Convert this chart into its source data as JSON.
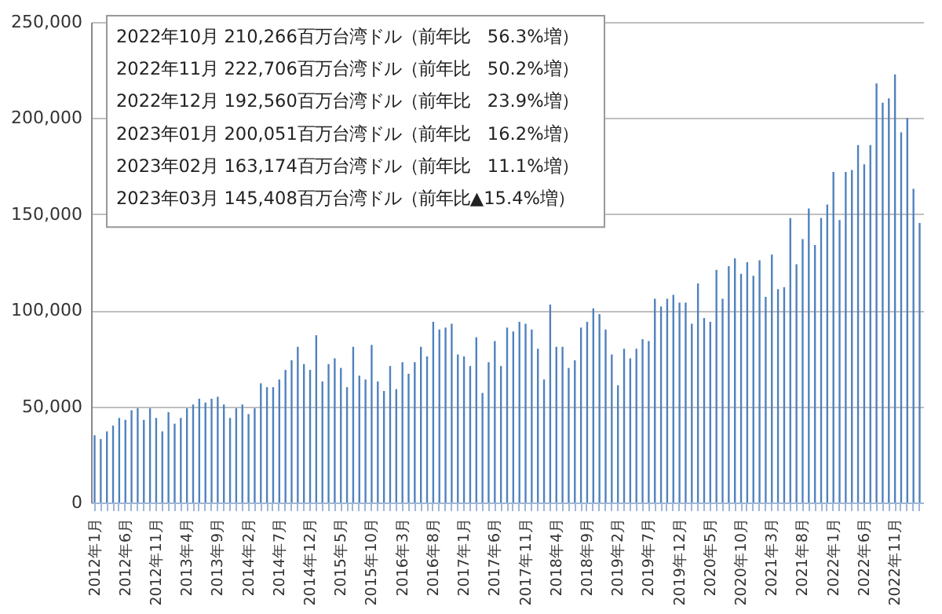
{
  "chart_data": {
    "type": "bar",
    "categories": [
      "2012年1月",
      null,
      null,
      null,
      null,
      "2012年6月",
      null,
      null,
      null,
      null,
      "2012年11月",
      null,
      null,
      null,
      null,
      "2013年4月",
      null,
      null,
      null,
      null,
      "2013年9月",
      null,
      null,
      null,
      null,
      "2014年2月",
      null,
      null,
      null,
      null,
      "2014年7月",
      null,
      null,
      null,
      null,
      "2014年12月",
      null,
      null,
      null,
      null,
      "2015年5月",
      null,
      null,
      null,
      null,
      "2015年10月",
      null,
      null,
      null,
      null,
      "2016年3月",
      null,
      null,
      null,
      null,
      "2016年8月",
      null,
      null,
      null,
      null,
      "2017年1月",
      null,
      null,
      null,
      null,
      "2017年6月",
      null,
      null,
      null,
      null,
      "2017年11月",
      null,
      null,
      null,
      null,
      "2018年4月",
      null,
      null,
      null,
      null,
      "2018年9月",
      null,
      null,
      null,
      null,
      "2019年2月",
      null,
      null,
      null,
      null,
      "2019年7月",
      null,
      null,
      null,
      null,
      "2019年12月",
      null,
      null,
      null,
      null,
      "2020年5月",
      null,
      null,
      null,
      null,
      "2020年10月",
      null,
      null,
      null,
      null,
      "2021年3月",
      null,
      null,
      null,
      null,
      "2021年8月",
      null,
      null,
      null,
      null,
      "2022年1月",
      null,
      null,
      null,
      null,
      "2022年6月",
      null,
      null,
      null,
      null,
      "2022年11月",
      null,
      null,
      null,
      null
    ],
    "values": [
      35000,
      33000,
      37000,
      40000,
      44000,
      43000,
      48000,
      49000,
      43000,
      49000,
      44000,
      37000,
      47000,
      41000,
      44000,
      49000,
      51000,
      54000,
      52000,
      54000,
      55000,
      51000,
      44000,
      49000,
      51000,
      46000,
      49000,
      62000,
      60000,
      60000,
      64000,
      69000,
      74000,
      81000,
      72000,
      69000,
      87000,
      63000,
      72000,
      75000,
      70000,
      60000,
      81000,
      66000,
      64000,
      82000,
      63000,
      58000,
      71000,
      59000,
      73000,
      67000,
      73000,
      81000,
      76000,
      94000,
      90000,
      91000,
      93000,
      77000,
      76000,
      71000,
      86000,
      57000,
      73000,
      84000,
      71000,
      91000,
      89000,
      94000,
      93000,
      90000,
      80000,
      64000,
      103000,
      81000,
      81000,
      70000,
      74000,
      91000,
      94000,
      101000,
      98000,
      90000,
      77000,
      61000,
      80000,
      75000,
      80000,
      85000,
      84000,
      106000,
      102000,
      106000,
      108000,
      104000,
      104000,
      93000,
      114000,
      96000,
      94000,
      121000,
      106000,
      123000,
      127000,
      119000,
      125000,
      118000,
      126000,
      107000,
      129000,
      111000,
      112000,
      148000,
      124000,
      137000,
      153000,
      134000,
      148000,
      155000,
      172000,
      147000,
      172000,
      173000,
      186000,
      176000,
      186000,
      218000,
      208000,
      210266,
      222706,
      192560,
      200051,
      163174,
      145408
    ],
    "color": "#4f81bd",
    "ylim": [
      0,
      250000
    ],
    "yticks": [
      0,
      {
        "value": 50000,
        "label": "50,000"
      },
      {
        "value": 100000,
        "label": "100,000"
      },
      {
        "value": 150000,
        "label": "150,000"
      },
      {
        "value": 200000,
        "label": "200,000"
      },
      {
        "value": 250000,
        "label": "250,000"
      }
    ],
    "grid": "y",
    "annotations": [
      "2022年10月  210,266百万台湾ドル（前年比　56.3%増）",
      "2022年11月  222,706百万台湾ドル（前年比　50.2%増）",
      "2022年12月  192,560百万台湾ドル（前年比　23.9%増）",
      "2023年01月  200,051百万台湾ドル（前年比　16.2%増）",
      "2023年02月  163,174百万台湾ドル（前年比　11.1%増）",
      "2023年03月  145,408百万台湾ドル（前年比▲15.4%増）"
    ]
  }
}
